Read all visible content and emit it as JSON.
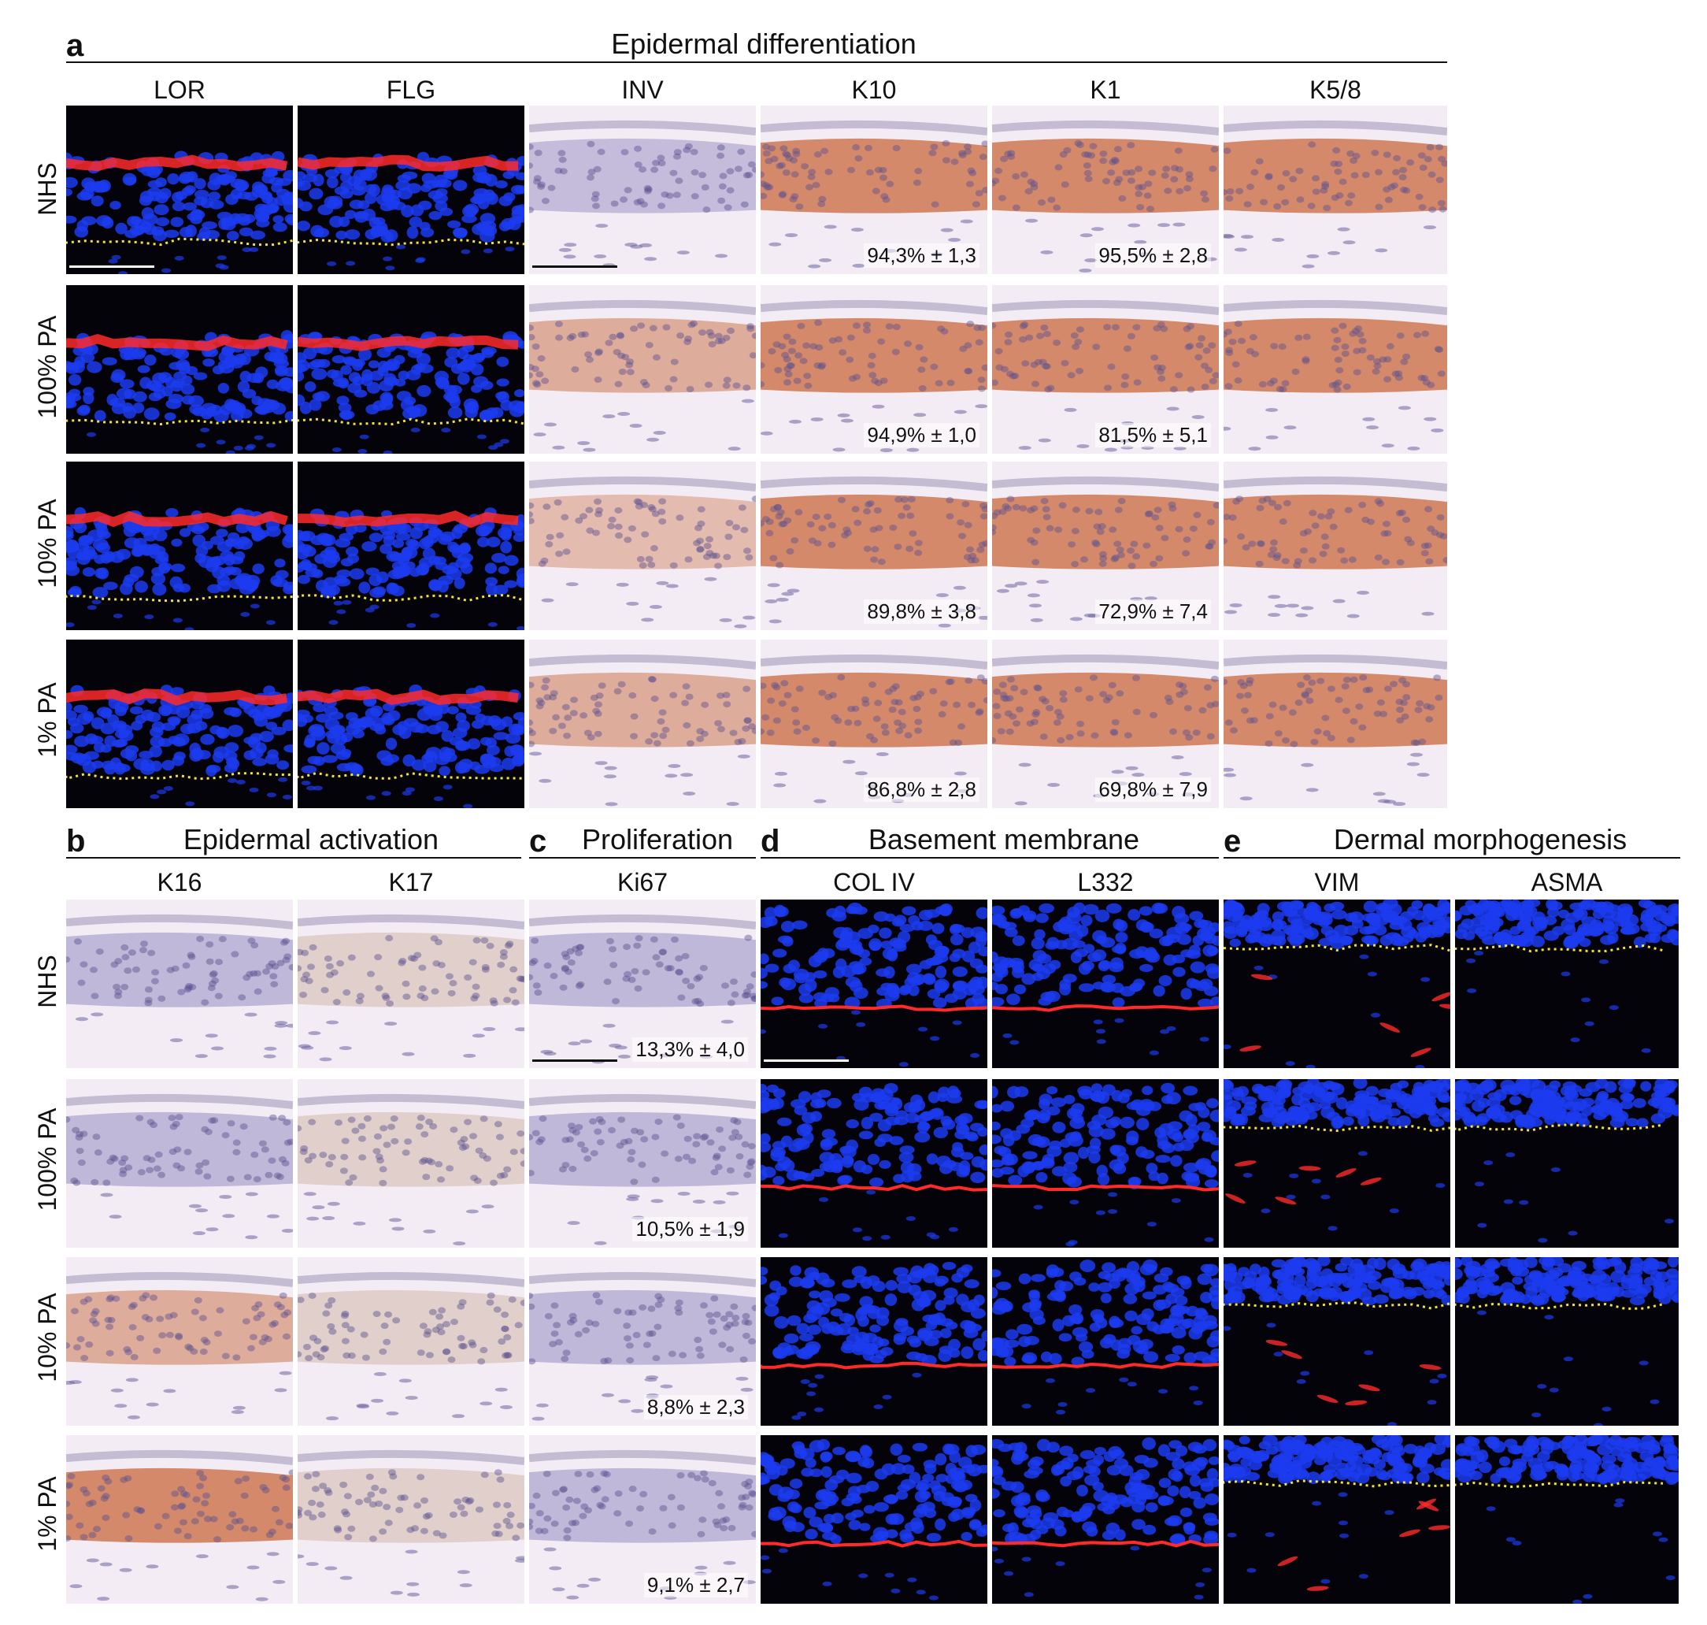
{
  "panels": {
    "a": {
      "letter": "a",
      "title": "Epidermal differentiation",
      "columns": [
        "LOR",
        "FLG",
        "INV",
        "K10",
        "K1",
        "K5/8"
      ]
    },
    "b": {
      "letter": "b",
      "title": "Epidermal activation",
      "columns": [
        "K16",
        "K17"
      ]
    },
    "c": {
      "letter": "c",
      "title": "Proliferation",
      "columns": [
        "Ki67"
      ]
    },
    "d": {
      "letter": "d",
      "title": "Basement membrane",
      "columns": [
        "COL IV",
        "L332"
      ]
    },
    "e": {
      "letter": "e",
      "title": "Dermal morphogenesis",
      "columns": [
        "VIM",
        "ASMA"
      ]
    }
  },
  "rows": [
    "NHS",
    "100% PA",
    "10% PA",
    "1% PA"
  ],
  "quantifications": {
    "K10": [
      "94,3% ± 1,3",
      "94,9% ± 1,0",
      "89,8% ± 3,8",
      "86,8% ± 2,8"
    ],
    "K1": [
      "95,5% ± 2,8",
      "81,5% ± 5,1",
      "72,9% ± 7,4",
      "69,8% ± 7,9"
    ],
    "Ki67": [
      "13,3% ± 4,0",
      "10,5% ± 1,9",
      "8,8% ± 2,3",
      "9,1% ± 2,7"
    ]
  },
  "colors": {
    "fluor_background": "#05030a",
    "dapi_blue": "#1c3cf0",
    "marker_red": "#ff2a2a",
    "dermal_line_yellow": "#f2e23a",
    "ihc_background": "#f4ecf4",
    "hematoxylin": "#8b83bd",
    "dab_brown": "#c4602f"
  }
}
